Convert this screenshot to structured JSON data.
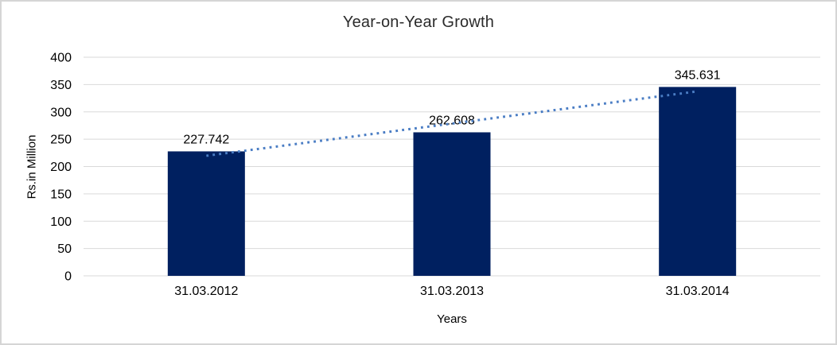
{
  "chart_data": {
    "type": "bar",
    "title": "Year-on-Year Growth",
    "categories": [
      "31.03.2012",
      "31.03.2013",
      "31.03.2014"
    ],
    "values": [
      227.742,
      262.608,
      345.631
    ],
    "data_labels": [
      "227.742",
      "262.608",
      "345.631"
    ],
    "xlabel": "Years",
    "ylabel": "Rs.in Million",
    "ylim": [
      0,
      400
    ],
    "ytick_step": 50,
    "ytick_labels": [
      "0",
      "50",
      "100",
      "150",
      "200",
      "250",
      "300",
      "350",
      "400"
    ],
    "grid": true,
    "legend": "none",
    "trendline": {
      "type": "linear",
      "style": "dotted"
    },
    "colors": {
      "bar": "#002060",
      "trendline": "#4a7dc4",
      "gridline": "#d9d9d9",
      "axis_text": "#000000",
      "label_text": "#000000",
      "title_text": "#2b2b2b"
    }
  }
}
